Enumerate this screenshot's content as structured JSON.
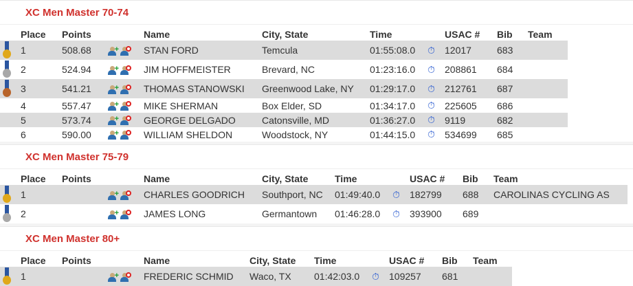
{
  "headers": {
    "place": "Place",
    "points": "Points",
    "name": "Name",
    "city": "City, State",
    "time": "Time",
    "usac": "USAC #",
    "bib": "Bib",
    "team": "Team"
  },
  "colors": {
    "title": "#d0312d",
    "gold": "#e0a81a",
    "silver": "#a8a8a8",
    "bronze": "#b8642a",
    "stopwatch": "#2a5bd0"
  },
  "sections": [
    {
      "title": "XC Men Master 70-74",
      "rows": [
        {
          "medal": "gold",
          "place": "1",
          "points": "508.68",
          "name": "STAN FORD",
          "city": "Temcula",
          "time": "01:55:08.0",
          "usac": "12017",
          "bib": "683",
          "team": ""
        },
        {
          "medal": "silver",
          "place": "2",
          "points": "524.94",
          "name": "JIM HOFFMEISTER",
          "city": "Brevard, NC",
          "time": "01:23:16.0",
          "usac": "208861",
          "bib": "684",
          "team": ""
        },
        {
          "medal": "bronze",
          "place": "3",
          "points": "541.21",
          "name": "THOMAS STANOWSKI",
          "city": "Greenwood Lake, NY",
          "time": "01:29:17.0",
          "usac": "212761",
          "bib": "687",
          "team": ""
        },
        {
          "medal": "",
          "place": "4",
          "points": "557.47",
          "name": "MIKE SHERMAN",
          "city": "Box Elder, SD",
          "time": "01:34:17.0",
          "usac": "225605",
          "bib": "686",
          "team": ""
        },
        {
          "medal": "",
          "place": "5",
          "points": "573.74",
          "name": "GEORGE DELGADO",
          "city": "Catonsville, MD",
          "time": "01:36:27.0",
          "usac": "9119",
          "bib": "682",
          "team": ""
        },
        {
          "medal": "",
          "place": "6",
          "points": "590.00",
          "name": "WILLIAM SHELDON",
          "city": "Woodstock, NY",
          "time": "01:44:15.0",
          "usac": "534699",
          "bib": "685",
          "team": ""
        }
      ]
    },
    {
      "title": "XC Men Master 75-79",
      "rows": [
        {
          "medal": "gold",
          "place": "1",
          "points": "",
          "name": "CHARLES GOODRICH",
          "city": "Southport, NC",
          "time": "01:49:40.0",
          "usac": "182799",
          "bib": "688",
          "team": "CAROLINAS CYCLING AS"
        },
        {
          "medal": "silver",
          "place": "2",
          "points": "",
          "name": "JAMES LONG",
          "city": "Germantown",
          "time": "01:46:28.0",
          "usac": "393900",
          "bib": "689",
          "team": ""
        }
      ]
    },
    {
      "title": "XC Men Master 80+",
      "rows": [
        {
          "medal": "gold",
          "place": "1",
          "points": "",
          "name": "FREDERIC SCHMID",
          "city": "Waco, TX",
          "time": "01:42:03.0",
          "usac": "109257",
          "bib": "681",
          "team": ""
        }
      ]
    }
  ]
}
